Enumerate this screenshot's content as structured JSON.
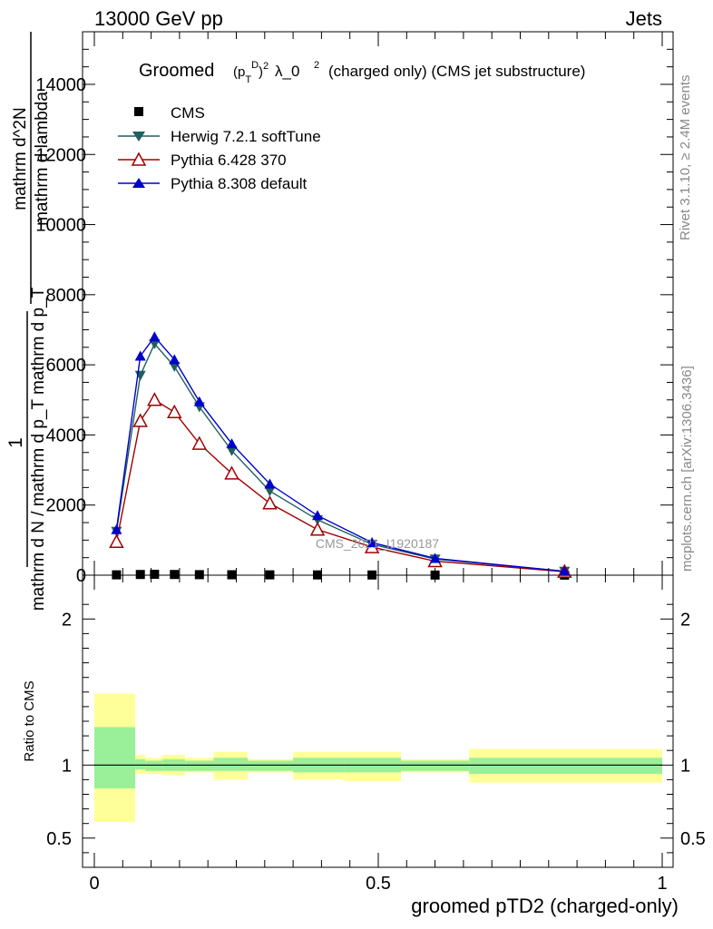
{
  "header": {
    "left": "13000 GeV pp",
    "right": "Jets"
  },
  "side_labels": {
    "rivet": "Rivet 3.1.10, ≥ 2.4M events",
    "mcplots": "mcplots.cern.ch [arXiv:1306.3436]"
  },
  "watermark": "CMS_2021_I1920187",
  "legend": {
    "title": "(charged only) (CMS jet substructure)",
    "title_prefix": "Groomed",
    "title_math": "λ_0",
    "entries": [
      "CMS",
      "Herwig 7.2.1 softTune",
      "Pythia 6.428 370",
      "Pythia 8.308 default"
    ]
  },
  "colors": {
    "cms": "#000000",
    "herwig": "#1f5f5f",
    "pythia6": "#a00000",
    "pythia8": "#0000cc",
    "band_inner": "#99f099",
    "band_outer": "#ffff99"
  },
  "ylabel_main": {
    "num": "1",
    "den": "mathrm d N / mathrm d p_T mathrm d p_T",
    "num2": "mathrm d^2N",
    "den2": "mathrm d lambda"
  },
  "ylabel_ratio": "Ratio to CMS",
  "xlabel": "groomed pTD2 (charged-only)",
  "chart_data": [
    {
      "type": "line",
      "xlim": [
        0,
        1
      ],
      "ylim": [
        0,
        15500
      ],
      "x_ticks": [
        0,
        0.5,
        1
      ],
      "x_tick_labels": [
        "0",
        "0.5",
        "1"
      ],
      "y_ticks": [
        0,
        2000,
        4000,
        6000,
        8000,
        10000,
        12000,
        14000
      ],
      "y_tick_labels": [
        "0",
        "2000",
        "4000",
        "6000",
        "8000",
        "10000",
        "12000",
        "14000"
      ],
      "x": [
        0.039,
        0.081,
        0.106,
        0.141,
        0.185,
        0.242,
        0.309,
        0.393,
        0.489,
        0.6,
        0.828
      ],
      "series": [
        {
          "name": "CMS",
          "marker": "square",
          "values": [
            10,
            20,
            25,
            20,
            15,
            12,
            10,
            8,
            6,
            4,
            2
          ]
        },
        {
          "name": "Herwig 7.2.1 softTune",
          "marker": "triangle-down",
          "values": [
            1250,
            5700,
            6600,
            5950,
            4800,
            3550,
            2400,
            1580,
            880,
            460,
            110
          ]
        },
        {
          "name": "Pythia 6.428 370",
          "marker": "triangle-up-open",
          "values": [
            950,
            4400,
            5000,
            4650,
            3750,
            2900,
            2050,
            1300,
            800,
            400,
            100
          ]
        },
        {
          "name": "Pythia 8.308 default",
          "marker": "triangle-up",
          "values": [
            1300,
            6250,
            6800,
            6150,
            4950,
            3750,
            2600,
            1700,
            930,
            480,
            110
          ]
        }
      ]
    },
    {
      "type": "area",
      "xlim": [
        0,
        1
      ],
      "ylim": [
        0.3,
        2.3
      ],
      "y_ticks": [
        0.5,
        1,
        2
      ],
      "y_tick_labels": [
        "0.5",
        "1",
        "2"
      ],
      "reference": 1,
      "bins": [
        {
          "x0": 0.0,
          "x1": 0.072,
          "inner": [
            0.84,
            1.26
          ],
          "outer": [
            0.61,
            1.49
          ]
        },
        {
          "x0": 0.072,
          "x1": 0.09,
          "inner": [
            0.97,
            1.04
          ],
          "outer": [
            0.94,
            1.07
          ]
        },
        {
          "x0": 0.09,
          "x1": 0.12,
          "inner": [
            0.96,
            1.03
          ],
          "outer": [
            0.94,
            1.05
          ]
        },
        {
          "x0": 0.12,
          "x1": 0.16,
          "inner": [
            0.96,
            1.04
          ],
          "outer": [
            0.93,
            1.07
          ]
        },
        {
          "x0": 0.16,
          "x1": 0.21,
          "inner": [
            0.96,
            1.03
          ],
          "outer": [
            0.95,
            1.05
          ]
        },
        {
          "x0": 0.21,
          "x1": 0.27,
          "inner": [
            0.96,
            1.05
          ],
          "outer": [
            0.9,
            1.09
          ]
        },
        {
          "x0": 0.27,
          "x1": 0.35,
          "inner": [
            0.96,
            1.03
          ],
          "outer": [
            0.95,
            1.04
          ]
        },
        {
          "x0": 0.35,
          "x1": 0.44,
          "inner": [
            0.95,
            1.05
          ],
          "outer": [
            0.9,
            1.09
          ]
        },
        {
          "x0": 0.44,
          "x1": 0.54,
          "inner": [
            0.95,
            1.05
          ],
          "outer": [
            0.89,
            1.09
          ]
        },
        {
          "x0": 0.54,
          "x1": 0.66,
          "inner": [
            0.96,
            1.03
          ],
          "outer": [
            0.95,
            1.04
          ]
        },
        {
          "x0": 0.66,
          "x1": 1.0,
          "inner": [
            0.94,
            1.05
          ],
          "outer": [
            0.88,
            1.11
          ]
        }
      ]
    }
  ]
}
